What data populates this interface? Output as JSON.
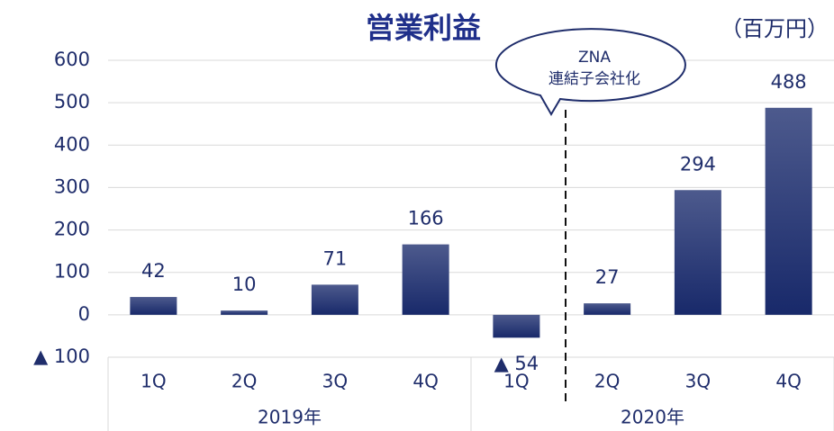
{
  "chart_data": {
    "type": "bar",
    "title": "営業利益",
    "unit": "（百万円）",
    "categories": [
      "1Q",
      "2Q",
      "3Q",
      "4Q",
      "1Q",
      "2Q",
      "3Q",
      "4Q"
    ],
    "groups": [
      "2019年",
      "2020年"
    ],
    "values": [
      42,
      10,
      71,
      166,
      -54,
      27,
      294,
      488
    ],
    "value_labels": [
      "42",
      "10",
      "71",
      "166",
      "▲ 54",
      "27",
      "294",
      "488"
    ],
    "color": "#1c2c6a",
    "ylim": [
      -100,
      600
    ],
    "yticks": [
      {
        "value": -100,
        "label": "▲ 100"
      },
      0,
      100,
      200,
      300,
      400,
      500,
      600
    ],
    "grid": true,
    "annotation": [
      "ZNA",
      "連結子会社化"
    ]
  }
}
